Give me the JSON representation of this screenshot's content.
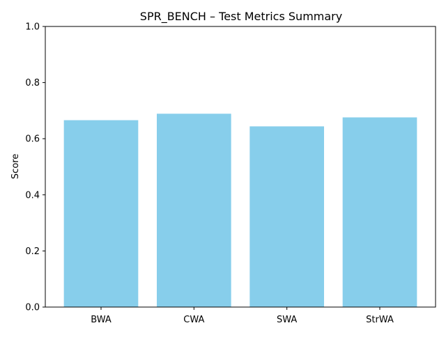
{
  "chart_data": {
    "type": "bar",
    "title": "SPR_BENCH – Test Metrics Summary",
    "xlabel": "",
    "ylabel": "Score",
    "categories": [
      "BWA",
      "CWA",
      "SWA",
      "StrWA"
    ],
    "values": [
      0.666,
      0.689,
      0.644,
      0.676
    ],
    "ylim": [
      0,
      1.0
    ],
    "yticks": [
      "0.0",
      "0.2",
      "0.4",
      "0.6",
      "0.8",
      "1.0"
    ],
    "bar_color": "#87ceeb",
    "grid": false,
    "legend": "none"
  }
}
